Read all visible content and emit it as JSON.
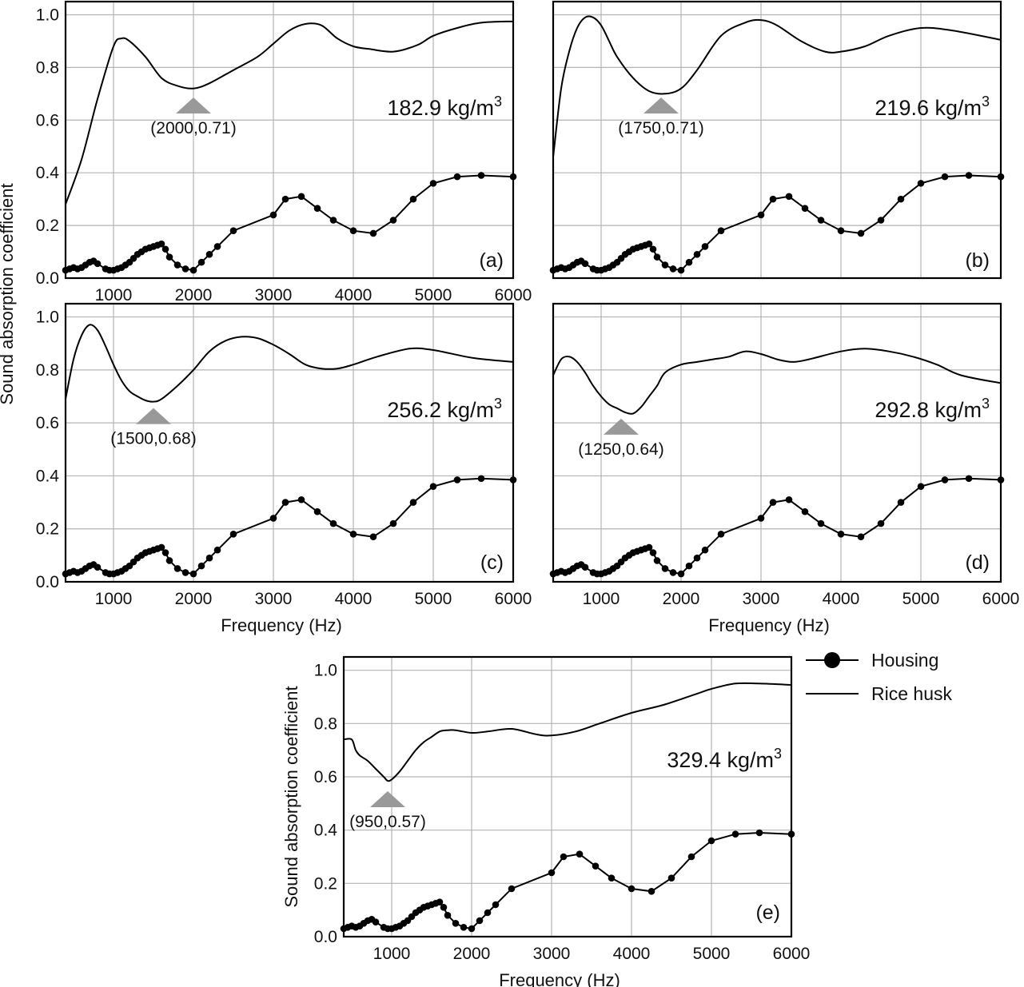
{
  "chart_data": [
    {
      "type": "line",
      "panel": "(a)",
      "density": "182.9 kg/m",
      "density_sup": "3",
      "xlim": [
        400,
        6000
      ],
      "ylim": [
        0,
        1.05
      ],
      "xticks": [
        1000,
        2000,
        3000,
        4000,
        5000,
        6000
      ],
      "yticks": [
        0.0,
        0.2,
        0.4,
        0.6,
        0.8,
        1.0
      ],
      "xlabel": "Frequency (Hz)",
      "ylabel": "Sound absorption coefficient",
      "grid": true,
      "annotation": {
        "text": "(2000,0.71)",
        "x": 2000,
        "y": 0.71
      },
      "series": [
        {
          "name": "Housing",
          "marker": "circle",
          "x": [
            400,
            450,
            500,
            550,
            600,
            650,
            700,
            750,
            800,
            900,
            950,
            1000,
            1050,
            1100,
            1150,
            1200,
            1250,
            1300,
            1350,
            1400,
            1450,
            1500,
            1550,
            1600,
            1650,
            1700,
            1800,
            1900,
            2000,
            2100,
            2200,
            2300,
            2500,
            3000,
            3150,
            3350,
            3550,
            3750,
            4000,
            4250,
            4500,
            4750,
            5000,
            5300,
            5600,
            6000
          ],
          "values": [
            0.03,
            0.035,
            0.04,
            0.035,
            0.04,
            0.05,
            0.06,
            0.065,
            0.055,
            0.035,
            0.03,
            0.03,
            0.035,
            0.04,
            0.05,
            0.06,
            0.075,
            0.09,
            0.1,
            0.11,
            0.115,
            0.12,
            0.125,
            0.13,
            0.11,
            0.08,
            0.05,
            0.035,
            0.03,
            0.06,
            0.09,
            0.12,
            0.18,
            0.24,
            0.3,
            0.31,
            0.265,
            0.22,
            0.18,
            0.17,
            0.22,
            0.3,
            0.36,
            0.385,
            0.39,
            0.385
          ]
        },
        {
          "name": "Rice husk",
          "marker": "none",
          "x": [
            400,
            600,
            800,
            1000,
            1100,
            1200,
            1400,
            1600,
            1800,
            2000,
            2200,
            2500,
            2800,
            3000,
            3200,
            3400,
            3600,
            3800,
            4000,
            4200,
            4500,
            4800,
            5000,
            5300,
            5600,
            6000
          ],
          "values": [
            0.28,
            0.45,
            0.68,
            0.88,
            0.91,
            0.9,
            0.84,
            0.76,
            0.73,
            0.72,
            0.74,
            0.79,
            0.84,
            0.89,
            0.94,
            0.965,
            0.96,
            0.91,
            0.88,
            0.87,
            0.86,
            0.885,
            0.92,
            0.95,
            0.97,
            0.975
          ]
        }
      ]
    },
    {
      "type": "line",
      "panel": "(b)",
      "density": "219.6 kg/m",
      "density_sup": "3",
      "xlim": [
        400,
        6000
      ],
      "ylim": [
        0,
        1.05
      ],
      "xticks": [
        1000,
        2000,
        3000,
        4000,
        5000,
        6000
      ],
      "yticks": [
        0.0,
        0.2,
        0.4,
        0.6,
        0.8,
        1.0
      ],
      "xlabel": "Frequency (Hz)",
      "ylabel": "Sound absorption coefficient",
      "grid": true,
      "annotation": {
        "text": "(1750,0.71)",
        "x": 1750,
        "y": 0.71
      },
      "series": [
        {
          "name": "Housing",
          "marker": "circle",
          "x": [
            400,
            450,
            500,
            550,
            600,
            650,
            700,
            750,
            800,
            900,
            950,
            1000,
            1050,
            1100,
            1150,
            1200,
            1250,
            1300,
            1350,
            1400,
            1450,
            1500,
            1550,
            1600,
            1650,
            1700,
            1800,
            1900,
            2000,
            2100,
            2200,
            2300,
            2500,
            3000,
            3150,
            3350,
            3550,
            3750,
            4000,
            4250,
            4500,
            4750,
            5000,
            5300,
            5600,
            6000
          ],
          "values": [
            0.03,
            0.035,
            0.04,
            0.035,
            0.04,
            0.05,
            0.06,
            0.065,
            0.055,
            0.035,
            0.03,
            0.03,
            0.035,
            0.04,
            0.05,
            0.06,
            0.075,
            0.09,
            0.1,
            0.11,
            0.115,
            0.12,
            0.125,
            0.13,
            0.11,
            0.08,
            0.05,
            0.035,
            0.03,
            0.06,
            0.09,
            0.12,
            0.18,
            0.24,
            0.3,
            0.31,
            0.265,
            0.22,
            0.18,
            0.17,
            0.22,
            0.3,
            0.36,
            0.385,
            0.39,
            0.385
          ]
        },
        {
          "name": "Rice husk",
          "marker": "none",
          "x": [
            400,
            500,
            600,
            700,
            800,
            900,
            1000,
            1100,
            1200,
            1400,
            1600,
            1800,
            2000,
            2200,
            2500,
            2800,
            3000,
            3200,
            3500,
            3800,
            4000,
            4300,
            4600,
            5000,
            5400,
            6000
          ],
          "values": [
            0.46,
            0.72,
            0.86,
            0.95,
            0.99,
            0.99,
            0.96,
            0.9,
            0.84,
            0.76,
            0.71,
            0.7,
            0.72,
            0.79,
            0.92,
            0.97,
            0.98,
            0.96,
            0.9,
            0.86,
            0.86,
            0.88,
            0.92,
            0.95,
            0.94,
            0.905
          ]
        }
      ]
    },
    {
      "type": "line",
      "panel": "(c)",
      "density": "256.2 kg/m",
      "density_sup": "3",
      "xlim": [
        400,
        6000
      ],
      "ylim": [
        0,
        1.05
      ],
      "xticks": [
        1000,
        2000,
        3000,
        4000,
        5000,
        6000
      ],
      "yticks": [
        0.0,
        0.2,
        0.4,
        0.6,
        0.8,
        1.0
      ],
      "xlabel": "Frequency (Hz)",
      "ylabel": "Sound absorption coefficient",
      "grid": true,
      "annotation": {
        "text": "(1500,0.68)",
        "x": 1500,
        "y": 0.68
      },
      "series": [
        {
          "name": "Housing",
          "marker": "circle",
          "x": [
            400,
            450,
            500,
            550,
            600,
            650,
            700,
            750,
            800,
            900,
            950,
            1000,
            1050,
            1100,
            1150,
            1200,
            1250,
            1300,
            1350,
            1400,
            1450,
            1500,
            1550,
            1600,
            1650,
            1700,
            1800,
            1900,
            2000,
            2100,
            2200,
            2300,
            2500,
            3000,
            3150,
            3350,
            3550,
            3750,
            4000,
            4250,
            4500,
            4750,
            5000,
            5300,
            5600,
            6000
          ],
          "values": [
            0.03,
            0.035,
            0.04,
            0.035,
            0.04,
            0.05,
            0.06,
            0.065,
            0.055,
            0.035,
            0.03,
            0.03,
            0.035,
            0.04,
            0.05,
            0.06,
            0.075,
            0.09,
            0.1,
            0.11,
            0.115,
            0.12,
            0.125,
            0.13,
            0.11,
            0.08,
            0.05,
            0.035,
            0.03,
            0.06,
            0.09,
            0.12,
            0.18,
            0.24,
            0.3,
            0.31,
            0.265,
            0.22,
            0.18,
            0.17,
            0.22,
            0.3,
            0.36,
            0.385,
            0.39,
            0.385
          ]
        },
        {
          "name": "Rice husk",
          "marker": "none",
          "x": [
            400,
            500,
            600,
            700,
            800,
            900,
            1000,
            1100,
            1200,
            1300,
            1400,
            1500,
            1600,
            1800,
            2000,
            2200,
            2400,
            2600,
            2800,
            3000,
            3200,
            3400,
            3600,
            3800,
            4000,
            4300,
            4700,
            5000,
            5500,
            6000
          ],
          "values": [
            0.69,
            0.84,
            0.93,
            0.97,
            0.95,
            0.89,
            0.82,
            0.76,
            0.72,
            0.7,
            0.685,
            0.68,
            0.69,
            0.74,
            0.8,
            0.87,
            0.91,
            0.925,
            0.92,
            0.895,
            0.86,
            0.82,
            0.805,
            0.805,
            0.82,
            0.85,
            0.88,
            0.875,
            0.845,
            0.83
          ]
        }
      ]
    },
    {
      "type": "line",
      "panel": "(d)",
      "density": "292.8 kg/m",
      "density_sup": "3",
      "xlim": [
        400,
        6000
      ],
      "ylim": [
        0,
        1.05
      ],
      "xticks": [
        1000,
        2000,
        3000,
        4000,
        5000,
        6000
      ],
      "yticks": [
        0.0,
        0.2,
        0.4,
        0.6,
        0.8,
        1.0
      ],
      "xlabel": "Frequency (Hz)",
      "ylabel": "Sound absorption coefficient",
      "grid": true,
      "annotation": {
        "text": "(1250,0.64)",
        "x": 1250,
        "y": 0.64
      },
      "series": [
        {
          "name": "Housing",
          "marker": "circle",
          "x": [
            400,
            450,
            500,
            550,
            600,
            650,
            700,
            750,
            800,
            900,
            950,
            1000,
            1050,
            1100,
            1150,
            1200,
            1250,
            1300,
            1350,
            1400,
            1450,
            1500,
            1550,
            1600,
            1650,
            1700,
            1800,
            1900,
            2000,
            2100,
            2200,
            2300,
            2500,
            3000,
            3150,
            3350,
            3550,
            3750,
            4000,
            4250,
            4500,
            4750,
            5000,
            5300,
            5600,
            6000
          ],
          "values": [
            0.03,
            0.035,
            0.04,
            0.035,
            0.04,
            0.05,
            0.06,
            0.065,
            0.055,
            0.035,
            0.03,
            0.03,
            0.035,
            0.04,
            0.05,
            0.06,
            0.075,
            0.09,
            0.1,
            0.11,
            0.115,
            0.12,
            0.125,
            0.13,
            0.11,
            0.08,
            0.05,
            0.035,
            0.03,
            0.06,
            0.09,
            0.12,
            0.18,
            0.24,
            0.3,
            0.31,
            0.265,
            0.22,
            0.18,
            0.17,
            0.22,
            0.3,
            0.36,
            0.385,
            0.39,
            0.385
          ]
        },
        {
          "name": "Rice husk",
          "marker": "none",
          "x": [
            400,
            500,
            600,
            700,
            800,
            900,
            1000,
            1100,
            1200,
            1300,
            1400,
            1500,
            1600,
            1700,
            1800,
            2000,
            2200,
            2400,
            2600,
            2800,
            3000,
            3200,
            3400,
            3600,
            4000,
            4300,
            4600,
            4900,
            5200,
            5500,
            6000
          ],
          "values": [
            0.78,
            0.84,
            0.85,
            0.83,
            0.79,
            0.74,
            0.7,
            0.67,
            0.655,
            0.64,
            0.635,
            0.66,
            0.7,
            0.74,
            0.79,
            0.82,
            0.83,
            0.84,
            0.85,
            0.87,
            0.86,
            0.84,
            0.83,
            0.84,
            0.87,
            0.88,
            0.87,
            0.85,
            0.82,
            0.78,
            0.75
          ]
        }
      ]
    },
    {
      "type": "line",
      "panel": "(e)",
      "density": "329.4 kg/m",
      "density_sup": "3",
      "xlim": [
        400,
        6000
      ],
      "ylim": [
        0,
        1.05
      ],
      "xticks": [
        1000,
        2000,
        3000,
        4000,
        5000,
        6000
      ],
      "yticks": [
        0.0,
        0.2,
        0.4,
        0.6,
        0.8,
        1.0
      ],
      "xlabel": "Frequency (Hz)",
      "ylabel": "Sound absorption coefficient",
      "grid": true,
      "annotation": {
        "text": "(950,0.57)",
        "x": 950,
        "y": 0.57
      },
      "series": [
        {
          "name": "Housing",
          "marker": "circle",
          "x": [
            400,
            450,
            500,
            550,
            600,
            650,
            700,
            750,
            800,
            900,
            950,
            1000,
            1050,
            1100,
            1150,
            1200,
            1250,
            1300,
            1350,
            1400,
            1450,
            1500,
            1550,
            1600,
            1650,
            1700,
            1800,
            1900,
            2000,
            2100,
            2200,
            2300,
            2500,
            3000,
            3150,
            3350,
            3550,
            3750,
            4000,
            4250,
            4500,
            4750,
            5000,
            5300,
            5600,
            6000
          ],
          "values": [
            0.03,
            0.035,
            0.04,
            0.035,
            0.04,
            0.05,
            0.06,
            0.065,
            0.055,
            0.035,
            0.03,
            0.03,
            0.035,
            0.04,
            0.05,
            0.06,
            0.075,
            0.09,
            0.1,
            0.11,
            0.115,
            0.12,
            0.125,
            0.13,
            0.11,
            0.08,
            0.05,
            0.035,
            0.03,
            0.06,
            0.09,
            0.12,
            0.18,
            0.24,
            0.3,
            0.31,
            0.265,
            0.22,
            0.18,
            0.17,
            0.22,
            0.3,
            0.36,
            0.385,
            0.39,
            0.385
          ]
        },
        {
          "name": "Rice husk",
          "marker": "none",
          "x": [
            400,
            500,
            550,
            600,
            700,
            800,
            900,
            950,
            1000,
            1100,
            1200,
            1300,
            1400,
            1500,
            1600,
            1700,
            1800,
            2000,
            2200,
            2500,
            2800,
            3000,
            3300,
            3600,
            4000,
            4400,
            4800,
            5000,
            5300,
            5600,
            6000
          ],
          "values": [
            0.74,
            0.74,
            0.7,
            0.68,
            0.66,
            0.63,
            0.6,
            0.585,
            0.59,
            0.62,
            0.66,
            0.7,
            0.73,
            0.75,
            0.77,
            0.775,
            0.775,
            0.765,
            0.77,
            0.78,
            0.76,
            0.755,
            0.77,
            0.8,
            0.84,
            0.87,
            0.91,
            0.93,
            0.95,
            0.95,
            0.945
          ]
        }
      ]
    }
  ],
  "legend": {
    "items": [
      {
        "label": "Housing",
        "marker": "circle"
      },
      {
        "label": "Rice husk",
        "marker": "none"
      }
    ]
  },
  "colors": {
    "line": "#000000",
    "grid": "#b3b3b3",
    "annotation": "#999999"
  }
}
